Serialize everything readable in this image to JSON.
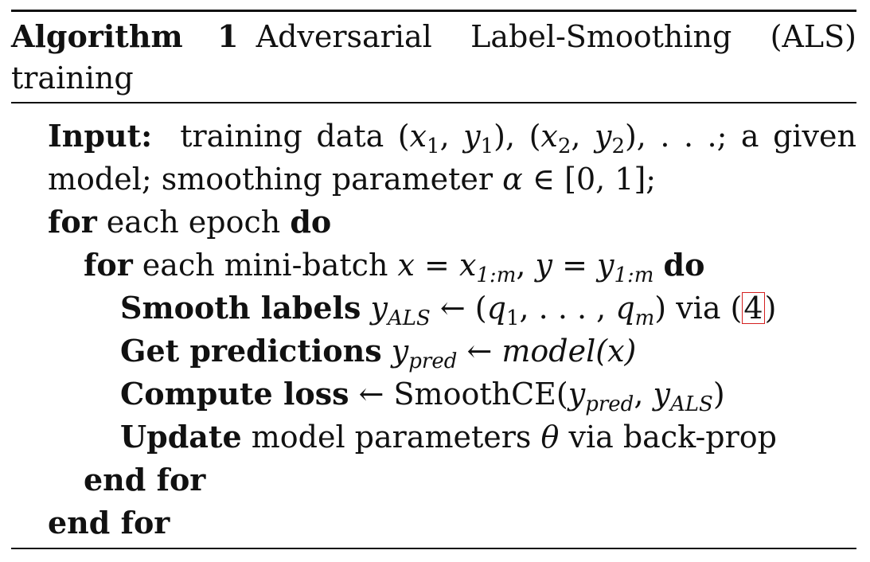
{
  "algorithm": {
    "label": "Algorithm",
    "number": "1",
    "title": "Adversarial Label-Smoothing (ALS) training"
  },
  "lines": {
    "input_keyword": "Input:",
    "input_text": "training data (x1, y1), (x2, y2), . . .; a given model; smoothing parameter α ∈ [0, 1];",
    "input_parts": {
      "t1": "training data (",
      "x1": "x",
      "x1_sub": "1",
      "c1": ", ",
      "y1": "y",
      "y1_sub": "1",
      "t2": "), (",
      "x2": "x",
      "x2_sub": "2",
      "c2": ", ",
      "y2": "y",
      "y2_sub": "2",
      "t3": "), . . .; a given model; smoothing parameter ",
      "alpha": "α",
      "t4": " ∈ [0, 1];"
    },
    "for1_kw": "for",
    "for1_text": " each epoch ",
    "for1_do": "do",
    "for2_kw": "for",
    "for2_text": " each mini-batch ",
    "for2_x": "x",
    "for2_eq1": " = ",
    "for2_x2": "x",
    "for2_x2_sub": "1:m",
    "for2_comma": ", ",
    "for2_y": "y",
    "for2_eq2": " = ",
    "for2_y2": "y",
    "for2_y2_sub": "1:m",
    "for2_do": "do",
    "smooth_kw": "Smooth labels",
    "smooth_y": "y",
    "smooth_y_sub": "ALS",
    "smooth_arrow": " ← (",
    "smooth_q1": "q",
    "smooth_q1_sub": "1",
    "smooth_mid": ", . . . , ",
    "smooth_qm": "q",
    "smooth_qm_sub": "m",
    "smooth_via": ") via (",
    "smooth_ref": "4",
    "smooth_close": ")",
    "pred_kw": "Get predictions",
    "pred_y": "y",
    "pred_y_sub": "pred",
    "pred_arrow": " ← ",
    "pred_model": "model",
    "pred_x": "(x)",
    "loss_kw": "Compute loss",
    "loss_arrow": " ← SmoothCE(",
    "loss_y1": "y",
    "loss_y1_sub": "pred",
    "loss_comma": ", ",
    "loss_y2": "y",
    "loss_y2_sub": "ALS",
    "loss_close": ")",
    "update_kw": "Update",
    "update_text": " model parameters ",
    "update_theta": "θ",
    "update_tail": " via back-prop",
    "end_for_inner": "end for",
    "end_for_outer": "end for"
  },
  "colors": {
    "ref_border": "#d42020"
  }
}
